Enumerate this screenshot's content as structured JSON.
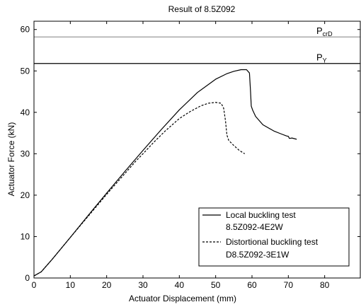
{
  "chart_data": {
    "type": "line",
    "title": "Result of 8.5Z092",
    "xlabel": "Actuator Displacement (mm)",
    "ylabel": "Actuator Force (kN)",
    "xlim": [
      0,
      90
    ],
    "ylim": [
      0,
      62
    ],
    "xticks": [
      0,
      10,
      20,
      30,
      40,
      50,
      60,
      70,
      80
    ],
    "yticks": [
      0,
      10,
      20,
      30,
      40,
      50,
      60
    ],
    "grid": false,
    "legend_position": "bottom-right",
    "reference_lines": [
      {
        "label": "P",
        "subscript": "crD",
        "y": 58.2,
        "color": "#9a9a9a"
      },
      {
        "label": "P",
        "subscript": "Y",
        "y": 51.8,
        "color": "#000000"
      }
    ],
    "series": [
      {
        "name": "Local buckling test",
        "name2": "8.5Z092-4E2W",
        "style": "solid",
        "x": [
          0,
          2,
          5,
          10,
          15,
          20,
          25,
          30,
          35,
          40,
          45,
          50,
          53,
          55,
          57,
          58.5,
          59.3,
          59.6,
          59.8,
          60.2,
          61,
          63,
          66,
          68,
          69.5,
          70,
          70.3,
          71,
          72.3
        ],
        "y": [
          0.5,
          1.5,
          4.5,
          9.8,
          15.2,
          20.5,
          25.7,
          30.8,
          35.8,
          40.6,
          44.8,
          48.0,
          49.3,
          49.9,
          50.3,
          50.3,
          49.5,
          45.0,
          41.5,
          40.5,
          39.0,
          37.0,
          35.5,
          34.8,
          34.3,
          34.2,
          33.7,
          33.8,
          33.5
        ]
      },
      {
        "name": "Distortional buckling test",
        "name2": "D8.5Z092-3E1W",
        "style": "dashed",
        "x": [
          0,
          2,
          5,
          10,
          15,
          20,
          25,
          28,
          30,
          33,
          36,
          40,
          43,
          46,
          48,
          50,
          51.5,
          52.2,
          52.7,
          53.1,
          53.6,
          55,
          56.5,
          58
        ],
        "y": [
          0.5,
          1.5,
          4.5,
          9.8,
          15.0,
          20.2,
          25.2,
          28.2,
          30.0,
          32.8,
          35.4,
          38.5,
          40.2,
          41.6,
          42.2,
          42.4,
          42.2,
          41.0,
          38.0,
          34.5,
          33.2,
          32.0,
          30.8,
          30.0
        ]
      }
    ]
  }
}
